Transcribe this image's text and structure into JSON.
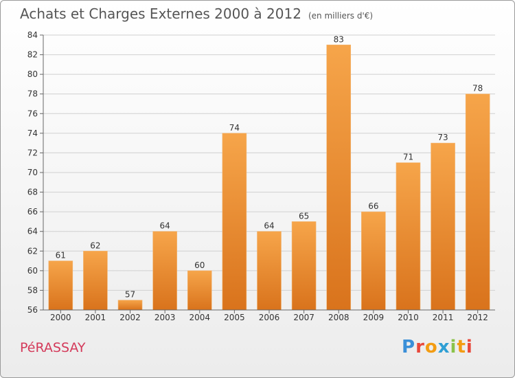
{
  "title": "Achats et Charges Externes 2000 à 2012",
  "subtitle": "(en milliers d'€)",
  "commune": "PéRASSAY",
  "logo": {
    "letters": [
      "P",
      "r",
      "o",
      "x",
      "i",
      "t",
      "i"
    ],
    "colors": [
      "#3a8fd8",
      "#e8483b",
      "#f39c12",
      "#2f9fd4",
      "#8bc34a",
      "#f39c12",
      "#e8483b"
    ]
  },
  "colors": {
    "bar_top": "#f6a54a",
    "bar_bottom": "#d9731c",
    "commune": "#d43a5a"
  },
  "chart_data": {
    "type": "bar",
    "title": "Achats et Charges Externes 2000 à 2012",
    "subtitle": "(en milliers d'€)",
    "xlabel": "",
    "ylabel": "",
    "categories": [
      "2000",
      "2001",
      "2002",
      "2003",
      "2004",
      "2005",
      "2006",
      "2007",
      "2008",
      "2009",
      "2010",
      "2011",
      "2012"
    ],
    "values": [
      61,
      62,
      57,
      64,
      60,
      74,
      64,
      65,
      83,
      66,
      71,
      73,
      78
    ],
    "ylim": [
      56,
      84
    ],
    "yticks": [
      56,
      58,
      60,
      62,
      64,
      66,
      68,
      70,
      72,
      74,
      76,
      78,
      80,
      82,
      84
    ],
    "grid": true
  }
}
